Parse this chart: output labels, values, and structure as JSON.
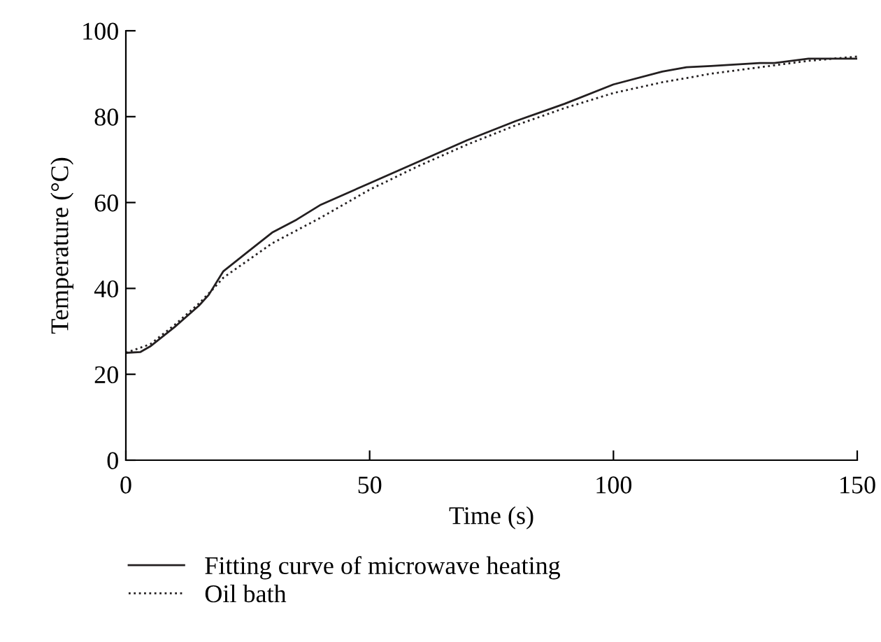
{
  "chart_data": {
    "type": "line",
    "xlabel": "Time (s)",
    "ylabel": "Temperature (°C)",
    "xlim": [
      0,
      150
    ],
    "ylim": [
      0,
      100
    ],
    "xticks": [
      0,
      50,
      100,
      150
    ],
    "yticks": [
      0,
      20,
      40,
      60,
      80,
      100
    ],
    "grid": false,
    "legend": "bottom",
    "marker": "none",
    "series": [
      {
        "name": "Fitting curve of microwave heating",
        "color": "#231f20",
        "line_style": "solid",
        "x": [
          0,
          3,
          5,
          10,
          15,
          17,
          20,
          25,
          30,
          35,
          40,
          50,
          60,
          70,
          80,
          90,
          100,
          110,
          115,
          120,
          130,
          133,
          140,
          150
        ],
        "values": [
          25,
          25.2,
          26.5,
          31,
          36,
          38.5,
          44,
          48.5,
          53,
          56,
          59.5,
          64.5,
          69.5,
          74.5,
          79,
          83,
          87.5,
          90.5,
          91.5,
          91.8,
          92.5,
          92.5,
          93.5,
          93.5
        ]
      },
      {
        "name": "Oil bath",
        "color": "#231f20",
        "line_style": "dotted",
        "x": [
          0,
          5,
          10,
          15,
          18,
          20,
          25,
          30,
          40,
          50,
          60,
          70,
          80,
          90,
          100,
          110,
          120,
          130,
          140,
          150
        ],
        "values": [
          25,
          27,
          31.5,
          36.5,
          40,
          42.5,
          46.5,
          50.5,
          56.5,
          63,
          68.5,
          73.5,
          78,
          82,
          85.5,
          88,
          90,
          91.5,
          93,
          94
        ]
      }
    ]
  }
}
